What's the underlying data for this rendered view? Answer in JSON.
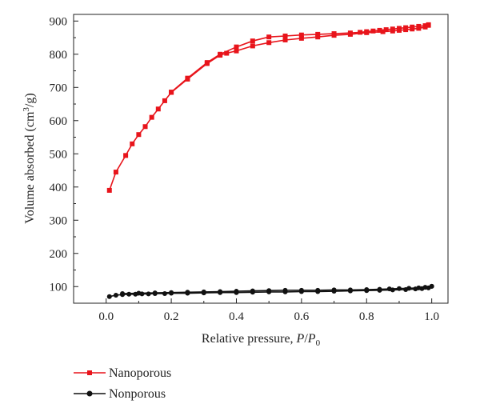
{
  "chart_data": {
    "type": "line",
    "title": "",
    "xlabel": "Relative pressure, P/P0",
    "ylabel": "Volume absorbed (cm3/g)",
    "xlim": [
      -0.1,
      1.05
    ],
    "ylim": [
      50,
      920
    ],
    "x_ticks": [
      "0.0",
      "0.2",
      "0.4",
      "0.6",
      "0.8",
      "1.0"
    ],
    "y_ticks": [
      "100",
      "200",
      "300",
      "400",
      "500",
      "600",
      "700",
      "800",
      "900"
    ],
    "grid": false,
    "legend_position": "bottom-left, outside plot",
    "series": [
      {
        "name": "Nanoporous",
        "color": "#e8141b",
        "marker": "square",
        "adsorption": {
          "x": [
            0.01,
            0.03,
            0.06,
            0.08,
            0.1,
            0.12,
            0.14,
            0.16,
            0.18,
            0.2,
            0.25,
            0.31,
            0.35,
            0.37,
            0.4,
            0.45,
            0.5,
            0.55,
            0.6,
            0.65,
            0.7,
            0.75,
            0.8,
            0.85,
            0.88,
            0.9,
            0.92,
            0.94,
            0.96,
            0.98,
            0.99
          ],
          "y": [
            390,
            445,
            495,
            530,
            558,
            582,
            610,
            635,
            660,
            685,
            725,
            772,
            797,
            803,
            810,
            825,
            835,
            843,
            848,
            852,
            857,
            860,
            865,
            868,
            870,
            872,
            874,
            876,
            878,
            882,
            887
          ]
        },
        "desorption": {
          "x": [
            0.99,
            0.98,
            0.96,
            0.94,
            0.92,
            0.9,
            0.88,
            0.86,
            0.84,
            0.82,
            0.8,
            0.78,
            0.75,
            0.7,
            0.65,
            0.6,
            0.55,
            0.5,
            0.45,
            0.4,
            0.35,
            0.31,
            0.25,
            0.2
          ],
          "y": [
            889,
            886,
            884,
            882,
            880,
            878,
            876,
            874,
            872,
            870,
            868,
            866,
            864,
            862,
            860,
            858,
            855,
            852,
            840,
            822,
            800,
            775,
            728,
            686
          ]
        }
      },
      {
        "name": "Nonporous",
        "color": "#111111",
        "marker": "circle",
        "adsorption": {
          "x": [
            0.01,
            0.03,
            0.05,
            0.07,
            0.09,
            0.11,
            0.13,
            0.15,
            0.18,
            0.2,
            0.25,
            0.3,
            0.35,
            0.4,
            0.45,
            0.5,
            0.55,
            0.6,
            0.65,
            0.7,
            0.75,
            0.8,
            0.84,
            0.88,
            0.92,
            0.95,
            0.97,
            0.99,
            1.0
          ],
          "y": [
            70,
            74,
            76,
            77,
            77,
            78,
            78,
            79,
            79,
            80,
            80,
            81,
            82,
            82,
            83,
            84,
            84,
            85,
            85,
            86,
            87,
            88,
            89,
            90,
            91,
            93,
            94,
            96,
            101
          ]
        },
        "desorption": {
          "x": [
            1.0,
            0.98,
            0.96,
            0.93,
            0.9,
            0.87,
            0.84,
            0.8,
            0.75,
            0.7,
            0.65,
            0.6,
            0.55,
            0.5,
            0.45,
            0.4,
            0.35,
            0.3,
            0.25,
            0.2,
            0.15,
            0.1,
            0.05
          ],
          "y": [
            101,
            98,
            96,
            95,
            94,
            93,
            92,
            91,
            90,
            90,
            89,
            89,
            89,
            88,
            87,
            86,
            85,
            84,
            83,
            82,
            81,
            80,
            79
          ]
        }
      }
    ]
  }
}
